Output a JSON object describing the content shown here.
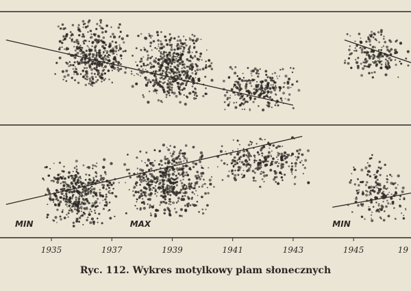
{
  "caption": "Ryc. 112. Wykres motylkowy plam słonecznych",
  "chart_data": {
    "type": "scatter",
    "title": "",
    "xlabel": "",
    "ylabel": "",
    "x_ticks": [
      "1935",
      "1937",
      "1939",
      "1941",
      "1943",
      "1945",
      "19"
    ],
    "phase_labels": [
      {
        "text": "MIN",
        "year": 1933.8
      },
      {
        "text": "MAX",
        "year": 1937.6
      },
      {
        "text": "MIN",
        "year": 1944.3
      }
    ],
    "xlim": [
      1933.3,
      1946.9
    ],
    "ylim": [
      -40,
      40
    ],
    "grid": false,
    "legend": "none",
    "colors": {
      "ink": "#2b2724",
      "paper": "#ebe5d6"
    },
    "series": [
      {
        "hemisphere": "north",
        "trend": [
          {
            "x": 1933.5,
            "y": 30
          },
          {
            "x": 1943.0,
            "y": 7
          }
        ],
        "clusters": [
          {
            "x": [
              1935.1,
              1937.6
            ],
            "y": [
              12,
              38
            ],
            "n": 420
          },
          {
            "x": [
              1937.6,
              1940.4
            ],
            "y": [
              7,
              34
            ],
            "n": 520
          },
          {
            "x": [
              1940.4,
              1943.3
            ],
            "y": [
              4,
              22
            ],
            "n": 260
          }
        ]
      },
      {
        "hemisphere": "south",
        "trend": [
          {
            "x": 1933.5,
            "y": -28
          },
          {
            "x": 1943.3,
            "y": -4
          }
        ],
        "clusters": [
          {
            "x": [
              1934.6,
              1937.3
            ],
            "y": [
              -36,
              -12
            ],
            "n": 420
          },
          {
            "x": [
              1937.3,
              1940.4
            ],
            "y": [
              -33,
              -6
            ],
            "n": 520
          },
          {
            "x": [
              1940.4,
              1943.6
            ],
            "y": [
              -22,
              -4
            ],
            "n": 260
          }
        ]
      },
      {
        "hemisphere": "north",
        "trend": [
          {
            "x": 1944.7,
            "y": 30
          },
          {
            "x": 1946.9,
            "y": 22
          }
        ],
        "clusters": [
          {
            "x": [
              1944.6,
              1946.9
            ],
            "y": [
              16,
              34
            ],
            "n": 180
          }
        ]
      },
      {
        "hemisphere": "south",
        "trend": [
          {
            "x": 1944.3,
            "y": -29
          },
          {
            "x": 1946.9,
            "y": -24
          }
        ],
        "clusters": [
          {
            "x": [
              1944.8,
              1946.9
            ],
            "y": [
              -36,
              -10
            ],
            "n": 180
          }
        ]
      }
    ]
  }
}
